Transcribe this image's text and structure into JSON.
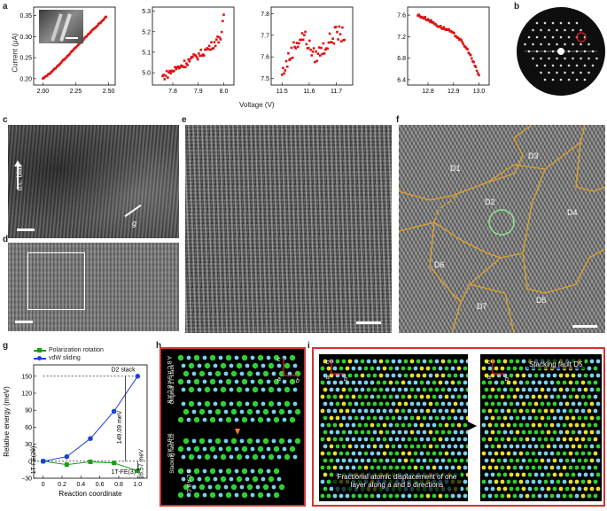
{
  "panel_labels": {
    "a": "a",
    "b": "b",
    "c": "c",
    "d": "d",
    "e": "e",
    "f": "f",
    "g": "g",
    "h": "h",
    "i": "i"
  },
  "panel_a": {
    "ylabel": "Current (μA)",
    "xlabel": "Voltage (V)",
    "subplots": [
      {
        "xticks": [
          "2.00",
          "2.25",
          "2.50"
        ],
        "yticks": [
          "0.20",
          "0.25",
          "0.30",
          "0.35"
        ]
      },
      {
        "xticks": [
          "7.8",
          "7.9",
          "8.0"
        ],
        "yticks": [
          "5.0",
          "5.1",
          "5.2",
          "5.3"
        ]
      },
      {
        "xticks": [
          "11.5",
          "11.6",
          "11.7"
        ],
        "yticks": [
          "7.5",
          "7.6",
          "7.7",
          "7.8"
        ]
      },
      {
        "xticks": [
          "12.8",
          "12.9",
          "13.0"
        ],
        "yticks": [
          "6.4",
          "6.8",
          "7.2",
          "7.6"
        ]
      }
    ]
  },
  "panel_c": {
    "arrow_label": "d.c. bias",
    "g_label": "g"
  },
  "panel_f": {
    "domains": [
      "D1",
      "D2",
      "D3",
      "D4",
      "D5",
      "D6",
      "D7"
    ]
  },
  "panel_h": {
    "stack_letters": "A B C A B A B C A B",
    "original_label": "Original 1T stack",
    "fault_letters": "A B C A B",
    "fault_label": "Stacking fault D2",
    "fault_letters2": "B C A B C",
    "axes": {
      "c": "c",
      "a": "a",
      "b": "b"
    }
  },
  "panel_i": {
    "caption": "Fractional atomic displacement of one layer along a and b directions",
    "fault_label": "Stacking fault D5",
    "axes": {
      "c": "c",
      "a": "a",
      "b": "b"
    }
  },
  "chart_data": [
    {
      "type": "scatter",
      "title": "",
      "xlabel": "",
      "ylabel": "Current (μA)",
      "xlim": [
        1.93,
        2.55
      ],
      "ylim": [
        0.185,
        0.37
      ],
      "x": [
        2.0,
        2.05,
        2.1,
        2.15,
        2.2,
        2.25,
        2.3,
        2.35,
        2.4,
        2.45,
        2.48
      ],
      "y": [
        0.2,
        0.212,
        0.226,
        0.242,
        0.258,
        0.274,
        0.29,
        0.307,
        0.322,
        0.337,
        0.347
      ],
      "series": [
        {
          "values": "increasing linear I-V"
        }
      ]
    },
    {
      "type": "scatter",
      "xlim": [
        7.72,
        8.04
      ],
      "ylim": [
        4.94,
        5.32
      ],
      "x": [
        7.76,
        7.8,
        7.84,
        7.88,
        7.92,
        7.96,
        7.99,
        8.0
      ],
      "y": [
        4.98,
        5.01,
        5.04,
        5.07,
        5.1,
        5.14,
        5.18,
        5.27
      ]
    },
    {
      "type": "scatter",
      "xlim": [
        11.46,
        11.76
      ],
      "ylim": [
        7.47,
        7.83
      ],
      "x": [
        11.5,
        11.52,
        11.55,
        11.58,
        11.62,
        11.66,
        11.7,
        11.73
      ],
      "y": [
        7.52,
        7.58,
        7.66,
        7.7,
        7.6,
        7.65,
        7.71,
        7.7
      ]
    },
    {
      "type": "scatter",
      "xlim": [
        12.72,
        13.04
      ],
      "ylim": [
        6.3,
        7.75
      ],
      "x": [
        12.76,
        12.8,
        12.84,
        12.88,
        12.92,
        12.96,
        13.0
      ],
      "y": [
        7.6,
        7.52,
        7.4,
        7.32,
        7.18,
        6.92,
        6.48
      ]
    },
    {
      "type": "line",
      "title": "",
      "xlabel": "Reaction coordinate",
      "ylabel": "Relative energy (meV)",
      "xlim": [
        -0.1,
        1.1
      ],
      "ylim": [
        -30,
        170
      ],
      "xticks": [
        "0",
        "0.2",
        "0.4",
        "0.6",
        "0.8",
        "1.0"
      ],
      "yticks": [
        "−30",
        "0",
        "30",
        "60",
        "90",
        "120",
        "150"
      ],
      "series": [
        {
          "name": "Polarization rotation",
          "color": "#1a9b1a",
          "x": [
            0,
            0.25,
            0.5,
            0.75,
            1.0
          ],
          "y": [
            0,
            -6,
            -1,
            -3,
            -17
          ]
        },
        {
          "name": "vdW sliding",
          "color": "#1f3fe0",
          "x": [
            0,
            0.25,
            0.5,
            0.75,
            1.0
          ],
          "y": [
            0,
            8,
            40,
            88,
            150
          ]
        }
      ],
      "annotations": {
        "d2": "D2 stack",
        "e1": "149.09 meV",
        "e2": "16.57 meV",
        "left": "1T-FE",
        "left_sub": "(2θ)",
        "right": "1T-FE",
        "right_sub": "(3)"
      }
    }
  ]
}
